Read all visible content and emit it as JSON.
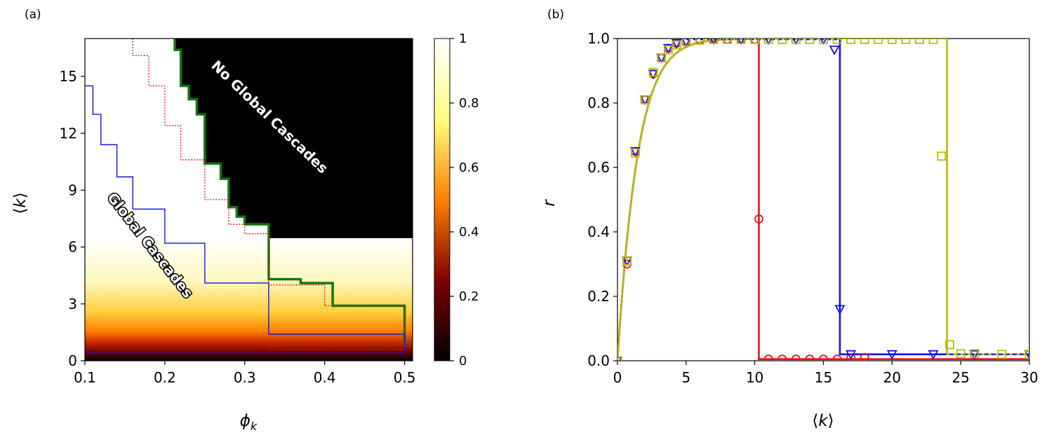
{
  "panel_a_label": "(a)",
  "panel_b_label": "(b)",
  "colorbar_ticks": [
    "0",
    "0.2",
    "0.4",
    "0.6",
    "0.8",
    "1"
  ],
  "annotations": {
    "no_global": "No Global Cascades",
    "global": "Global Cascades"
  },
  "colors": {
    "red": "#ee1111",
    "blue": "#1111ee",
    "green": "#117711",
    "yellow": "#bbbb00",
    "heat_dark": "#000000"
  },
  "chart_data": [
    {
      "type": "heatmap",
      "panel": "(a)",
      "xlabel": "ϕ_k",
      "ylabel": "⟨k⟩",
      "xlim": [
        0.1,
        0.51
      ],
      "ylim": [
        0,
        17
      ],
      "xticks": [
        "0.1",
        "0.2",
        "0.3",
        "0.4",
        "0.5"
      ],
      "yticks": [
        "0",
        "3",
        "6",
        "9",
        "12",
        "15"
      ],
      "colorbar": {
        "range": [
          0,
          1
        ],
        "ticks": [
          0,
          0.2,
          0.4,
          0.6,
          0.8,
          1
        ],
        "colormap": "afmhot"
      },
      "regions": {
        "upper_right": "No Global Cascades",
        "lower_left": "Global Cascades"
      },
      "cascade_boundary": [
        [
          0.2125,
          17
        ],
        [
          0.2125,
          16.4
        ],
        [
          0.22,
          16.4
        ],
        [
          0.22,
          14.5
        ],
        [
          0.23,
          14.5
        ],
        [
          0.23,
          13.8
        ],
        [
          0.24,
          13.8
        ],
        [
          0.24,
          13
        ],
        [
          0.25,
          13
        ],
        [
          0.25,
          10.4
        ],
        [
          0.27,
          10.4
        ],
        [
          0.27,
          9.6
        ],
        [
          0.28,
          9.6
        ],
        [
          0.28,
          8.1
        ],
        [
          0.29,
          8.1
        ],
        [
          0.29,
          7.6
        ],
        [
          0.3,
          7.6
        ],
        [
          0.3,
          7.2
        ],
        [
          0.33,
          7.2
        ],
        [
          0.33,
          4.3
        ],
        [
          0.37,
          4.3
        ],
        [
          0.37,
          4.1
        ],
        [
          0.41,
          4.1
        ],
        [
          0.41,
          2.9
        ],
        [
          0.5,
          2.9
        ],
        [
          0.5,
          0
        ]
      ],
      "series": [
        {
          "color": "green",
          "style": "solid-thick",
          "points": [
            [
              0.2125,
              17
            ],
            [
              0.2125,
              16.4
            ],
            [
              0.22,
              16.4
            ],
            [
              0.22,
              14.5
            ],
            [
              0.23,
              14.5
            ],
            [
              0.23,
              13.8
            ],
            [
              0.24,
              13.8
            ],
            [
              0.24,
              13
            ],
            [
              0.25,
              13
            ],
            [
              0.25,
              10.4
            ],
            [
              0.27,
              10.4
            ],
            [
              0.27,
              9.6
            ],
            [
              0.28,
              9.6
            ],
            [
              0.28,
              8.1
            ],
            [
              0.29,
              8.1
            ],
            [
              0.29,
              7.6
            ],
            [
              0.3,
              7.6
            ],
            [
              0.3,
              7.2
            ],
            [
              0.33,
              7.2
            ],
            [
              0.33,
              4.3
            ],
            [
              0.37,
              4.3
            ],
            [
              0.37,
              4.1
            ],
            [
              0.41,
              4.1
            ],
            [
              0.41,
              2.9
            ],
            [
              0.5,
              2.9
            ],
            [
              0.5,
              0.7
            ]
          ]
        },
        {
          "color": "red",
          "style": "dotted",
          "points": [
            [
              0.16,
              17
            ],
            [
              0.16,
              16.1
            ],
            [
              0.18,
              16.1
            ],
            [
              0.18,
              14.5
            ],
            [
              0.2,
              14.5
            ],
            [
              0.2,
              12.4
            ],
            [
              0.22,
              12.4
            ],
            [
              0.22,
              10.6
            ],
            [
              0.25,
              10.6
            ],
            [
              0.25,
              8.5
            ],
            [
              0.28,
              8.5
            ],
            [
              0.28,
              7.2
            ],
            [
              0.3,
              7.2
            ],
            [
              0.3,
              6.7
            ],
            [
              0.33,
              6.7
            ],
            [
              0.33,
              4
            ],
            [
              0.4,
              4
            ],
            [
              0.4,
              2.9
            ],
            [
              0.5,
              2.9
            ],
            [
              0.5,
              0.8
            ],
            [
              0.33,
              0.8
            ],
            [
              0.33,
              0.6
            ],
            [
              0.5,
              0.6
            ]
          ]
        },
        {
          "color": "blue",
          "style": "solid-thin",
          "points": [
            [
              0.1,
              14.5
            ],
            [
              0.11,
              14.5
            ],
            [
              0.11,
              13
            ],
            [
              0.12,
              13
            ],
            [
              0.12,
              11.4
            ],
            [
              0.14,
              11.4
            ],
            [
              0.14,
              9.7
            ],
            [
              0.16,
              9.7
            ],
            [
              0.16,
              8
            ],
            [
              0.2,
              8
            ],
            [
              0.2,
              6.2
            ],
            [
              0.25,
              6.2
            ],
            [
              0.25,
              4.1
            ],
            [
              0.33,
              4.1
            ],
            [
              0.33,
              1.4
            ],
            [
              0.5,
              1.4
            ],
            [
              0.5,
              0.4
            ],
            [
              0.1,
              0.4
            ]
          ]
        }
      ]
    },
    {
      "type": "line",
      "panel": "(b)",
      "xlabel": "⟨k⟩",
      "ylabel": "r",
      "xlim": [
        0,
        30
      ],
      "ylim": [
        0,
        1
      ],
      "xticks": [
        "0",
        "5",
        "10",
        "15",
        "20",
        "25",
        "30"
      ],
      "yticks": [
        "0.0",
        "0.2",
        "0.4",
        "0.6",
        "0.8",
        "1.0"
      ],
      "series": [
        {
          "color": "red",
          "marker": "circle",
          "k_drop": 10.3,
          "points": [
            [
              0,
              0
            ],
            [
              0.7,
              0.3
            ],
            [
              1.3,
              0.65
            ],
            [
              2,
              0.81
            ],
            [
              2.6,
              0.89
            ],
            [
              3.2,
              0.94
            ],
            [
              3.7,
              0.97
            ],
            [
              4.3,
              0.985
            ],
            [
              5,
              0.99
            ],
            [
              6,
              0.995
            ],
            [
              7,
              0.997
            ],
            [
              8,
              0.997
            ],
            [
              9,
              0.997
            ],
            [
              10,
              0.997
            ],
            [
              10.3,
              0.44
            ],
            [
              11,
              0.005
            ],
            [
              12,
              0.005
            ],
            [
              13,
              0.005
            ],
            [
              14,
              0.005
            ],
            [
              15,
              0.005
            ],
            [
              16,
              0.005
            ],
            [
              17,
              0.01
            ],
            [
              18,
              0.01
            ]
          ]
        },
        {
          "color": "blue",
          "marker": "triangle",
          "k_drop": 16.2,
          "points": [
            [
              0,
              0
            ],
            [
              0.7,
              0.31
            ],
            [
              1.3,
              0.65
            ],
            [
              2,
              0.81
            ],
            [
              2.6,
              0.89
            ],
            [
              3.2,
              0.94
            ],
            [
              3.7,
              0.97
            ],
            [
              4.3,
              0.985
            ],
            [
              5,
              0.99
            ],
            [
              7,
              0.997
            ],
            [
              9,
              0.997
            ],
            [
              11,
              0.997
            ],
            [
              13,
              0.997
            ],
            [
              15,
              0.997
            ],
            [
              15.8,
              0.965
            ],
            [
              16.2,
              0.16
            ],
            [
              17,
              0.02
            ],
            [
              20,
              0.02
            ],
            [
              23,
              0.02
            ],
            [
              26,
              0.02
            ],
            [
              30,
              0.02
            ]
          ]
        },
        {
          "color": "yellow",
          "marker": "square",
          "k_drop": 24,
          "points": [
            [
              0,
              0
            ],
            [
              0.7,
              0.31
            ],
            [
              1.3,
              0.645
            ],
            [
              2,
              0.81
            ],
            [
              2.6,
              0.895
            ],
            [
              3.2,
              0.94
            ],
            [
              3.7,
              0.965
            ],
            [
              4.3,
              0.98
            ],
            [
              5,
              0.99
            ],
            [
              6,
              0.995
            ],
            [
              7,
              0.997
            ],
            [
              8,
              0.997
            ],
            [
              9,
              0.997
            ],
            [
              10,
              0.997
            ],
            [
              11,
              0.997
            ],
            [
              12,
              0.997
            ],
            [
              13,
              0.997
            ],
            [
              14,
              0.997
            ],
            [
              15,
              0.997
            ],
            [
              16,
              0.997
            ],
            [
              17,
              0.997
            ],
            [
              18,
              0.997
            ],
            [
              19,
              0.997
            ],
            [
              20,
              0.997
            ],
            [
              21,
              0.997
            ],
            [
              22,
              0.997
            ],
            [
              23,
              0.997
            ],
            [
              23.6,
              0.635
            ],
            [
              24.2,
              0.05
            ],
            [
              25,
              0.022
            ],
            [
              26,
              0.022
            ],
            [
              28,
              0.02
            ],
            [
              30,
              0.02
            ]
          ]
        }
      ]
    }
  ]
}
